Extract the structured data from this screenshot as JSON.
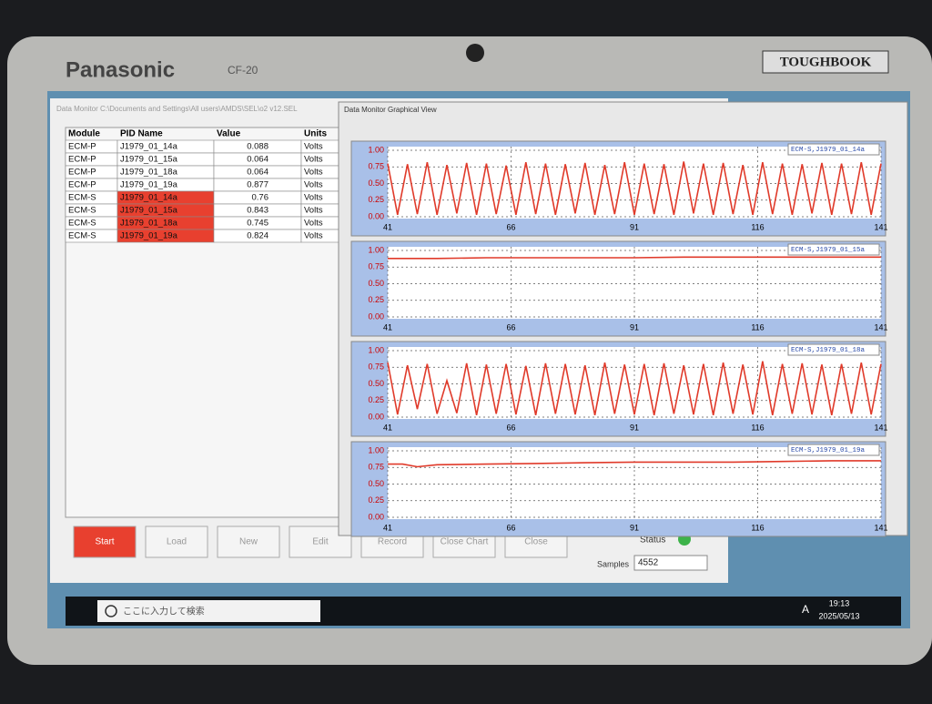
{
  "device": {
    "brand": "Panasonic",
    "model": "CF-20",
    "badge": "TOUGHBOOK"
  },
  "main_window": {
    "title": "Data Monitor C:\\Documents and Settings\\All users\\AMDS\\SEL\\o2 v12.SEL",
    "table": {
      "headers": [
        "Module",
        "PID Name",
        "Value",
        "Units"
      ],
      "rows": [
        [
          "ECM-P",
          "J1979_01_14a",
          "0.088",
          "Volts"
        ],
        [
          "ECM-P",
          "J1979_01_15a",
          "0.064",
          "Volts"
        ],
        [
          "ECM-P",
          "J1979_01_18a",
          "0.064",
          "Volts"
        ],
        [
          "ECM-P",
          "J1979_01_19a",
          "0.877",
          "Volts"
        ],
        [
          "ECM-S",
          "J1979_01_14a",
          "0.76",
          "Volts"
        ],
        [
          "ECM-S",
          "J1979_01_15a",
          "0.843",
          "Volts"
        ],
        [
          "ECM-S",
          "J1979_01_18a",
          "0.745",
          "Volts"
        ],
        [
          "ECM-S",
          "J1979_01_19a",
          "0.824",
          "Volts"
        ]
      ]
    },
    "buttons": [
      "Start",
      "Load",
      "New",
      "Edit",
      "Record",
      "Close Chart",
      "Close"
    ],
    "status_label": "Status",
    "samples_label": "Samples",
    "samples_value": "4552"
  },
  "graph_window": {
    "title": "Data Monitor Graphical View"
  },
  "charts": [
    {
      "type": "line",
      "xlim": [
        41,
        141
      ],
      "ylim": [
        0,
        1
      ],
      "xticks": [
        41,
        66,
        91,
        116,
        141
      ],
      "yticks": [
        {
          "value": 0,
          "label": "0.00"
        },
        {
          "value": 0.25,
          "label": "0.25"
        },
        {
          "value": 0.5,
          "label": "0.50"
        },
        {
          "value": 0.75,
          "label": "0.75"
        },
        {
          "value": 1,
          "label": "1.00"
        }
      ],
      "grid": true,
      "x": [
        41,
        43,
        45,
        47,
        49,
        51,
        53,
        55,
        57,
        59,
        61,
        63,
        65,
        67,
        69,
        71,
        73,
        75,
        77,
        79,
        81,
        83,
        85,
        87,
        89,
        91,
        93,
        95,
        97,
        99,
        101,
        103,
        105,
        107,
        109,
        111,
        113,
        115,
        117,
        119,
        121,
        123,
        125,
        127,
        129,
        131,
        133,
        135,
        137,
        139,
        141
      ],
      "series": [
        {
          "name": "ECM-S,J1979_01_14a",
          "color": "#e03a2a",
          "values": [
            0.8,
            0.03,
            0.79,
            0.04,
            0.82,
            0.03,
            0.78,
            0.05,
            0.81,
            0.03,
            0.8,
            0.04,
            0.77,
            0.03,
            0.82,
            0.04,
            0.8,
            0.03,
            0.79,
            0.05,
            0.81,
            0.03,
            0.78,
            0.04,
            0.82,
            0.03,
            0.8,
            0.04,
            0.79,
            0.03,
            0.83,
            0.05,
            0.8,
            0.03,
            0.81,
            0.04,
            0.78,
            0.03,
            0.82,
            0.04,
            0.8,
            0.03,
            0.79,
            0.05,
            0.81,
            0.03,
            0.8,
            0.04,
            0.82,
            0.03,
            0.8
          ]
        }
      ]
    },
    {
      "type": "line",
      "xlim": [
        41,
        141
      ],
      "ylim": [
        0,
        1
      ],
      "xticks": [
        41,
        66,
        91,
        116,
        141
      ],
      "yticks": [
        {
          "value": 0,
          "label": "0.00"
        },
        {
          "value": 0.25,
          "label": "0.25"
        },
        {
          "value": 0.5,
          "label": "0.50"
        },
        {
          "value": 0.75,
          "label": "0.75"
        },
        {
          "value": 1,
          "label": "1.00"
        }
      ],
      "grid": true,
      "x": [
        41,
        51,
        61,
        71,
        81,
        91,
        101,
        111,
        121,
        131,
        141
      ],
      "series": [
        {
          "name": "ECM-S,J1979_01_15a",
          "color": "#e03a2a",
          "values": [
            0.88,
            0.88,
            0.89,
            0.89,
            0.89,
            0.89,
            0.9,
            0.9,
            0.9,
            0.9,
            0.9
          ]
        }
      ]
    },
    {
      "type": "line",
      "xlim": [
        41,
        141
      ],
      "ylim": [
        0,
        1
      ],
      "xticks": [
        41,
        66,
        91,
        116,
        141
      ],
      "yticks": [
        {
          "value": 0,
          "label": "0.00"
        },
        {
          "value": 0.25,
          "label": "0.25"
        },
        {
          "value": 0.5,
          "label": "0.50"
        },
        {
          "value": 0.75,
          "label": "0.75"
        },
        {
          "value": 1,
          "label": "1.00"
        }
      ],
      "grid": true,
      "x": [
        41,
        43,
        45,
        47,
        49,
        51,
        53,
        55,
        57,
        59,
        61,
        63,
        65,
        67,
        69,
        71,
        73,
        75,
        77,
        79,
        81,
        83,
        85,
        87,
        89,
        91,
        93,
        95,
        97,
        99,
        101,
        103,
        105,
        107,
        109,
        111,
        113,
        115,
        117,
        119,
        121,
        123,
        125,
        127,
        129,
        131,
        133,
        135,
        137,
        139,
        141
      ],
      "series": [
        {
          "name": "ECM-S,J1979_01_18a",
          "color": "#e03a2a",
          "values": [
            0.82,
            0.04,
            0.78,
            0.12,
            0.8,
            0.05,
            0.55,
            0.06,
            0.81,
            0.03,
            0.79,
            0.05,
            0.8,
            0.04,
            0.77,
            0.03,
            0.81,
            0.05,
            0.8,
            0.04,
            0.78,
            0.03,
            0.82,
            0.05,
            0.79,
            0.04,
            0.8,
            0.03,
            0.81,
            0.05,
            0.78,
            0.04,
            0.8,
            0.03,
            0.82,
            0.05,
            0.79,
            0.04,
            0.84,
            0.03,
            0.8,
            0.05,
            0.81,
            0.04,
            0.79,
            0.03,
            0.8,
            0.05,
            0.82,
            0.04,
            0.8
          ]
        }
      ]
    },
    {
      "type": "line",
      "xlim": [
        41,
        141
      ],
      "ylim": [
        0,
        1
      ],
      "xticks": [
        41,
        66,
        91,
        116,
        141
      ],
      "yticks": [
        {
          "value": 0,
          "label": "0.00"
        },
        {
          "value": 0.25,
          "label": "0.25"
        },
        {
          "value": 0.5,
          "label": "0.50"
        },
        {
          "value": 0.75,
          "label": "0.75"
        },
        {
          "value": 1,
          "label": "1.00"
        }
      ],
      "grid": true,
      "x": [
        41,
        44,
        47,
        51,
        61,
        71,
        81,
        91,
        101,
        111,
        121,
        131,
        141
      ],
      "series": [
        {
          "name": "ECM-S,J1979_01_19a",
          "color": "#e03a2a",
          "values": [
            0.8,
            0.8,
            0.76,
            0.79,
            0.8,
            0.81,
            0.82,
            0.83,
            0.83,
            0.83,
            0.84,
            0.85,
            0.85
          ]
        }
      ]
    }
  ],
  "taskbar": {
    "search": "ここに入力して検索",
    "ime": "A",
    "time": "19:13",
    "date": "2025/05/13"
  }
}
